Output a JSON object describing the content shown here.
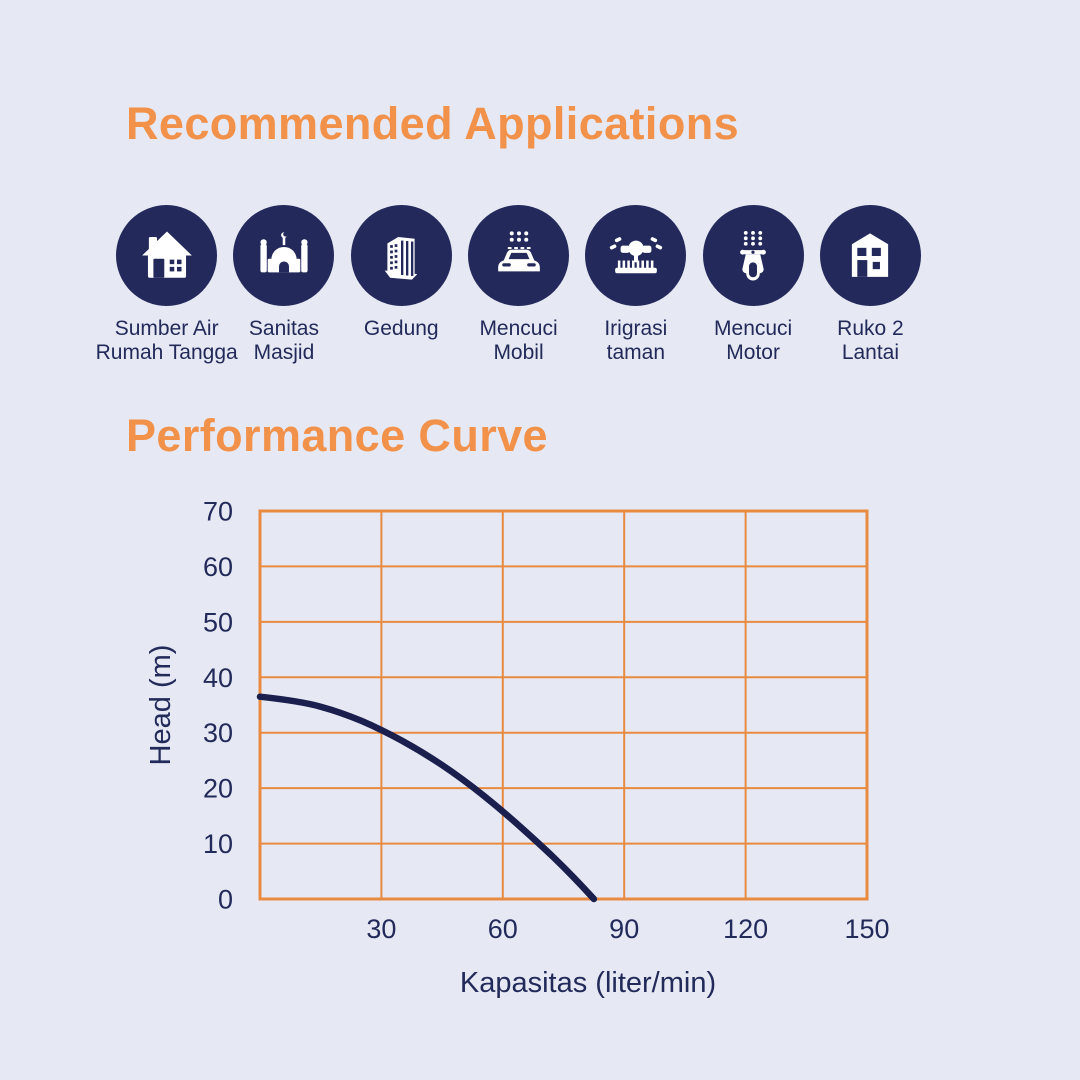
{
  "colors": {
    "background": "#E6E8F3",
    "accent_orange": "#F2914A",
    "grid_orange": "#E98A41",
    "navy": "#232A5B",
    "curve_navy": "#1A1F4D",
    "text_navy": "#222A5A",
    "icon_glyph": "#FFFFFF"
  },
  "applications": {
    "title": "Recommended Applications",
    "items": [
      {
        "icon": "house-icon",
        "lines": [
          "Sumber Air",
          "Rumah Tangga"
        ]
      },
      {
        "icon": "mosque-icon",
        "lines": [
          "Sanitas",
          "Masjid"
        ]
      },
      {
        "icon": "building-icon",
        "lines": [
          "Gedung"
        ]
      },
      {
        "icon": "car-wash-icon",
        "lines": [
          "Mencuci",
          "Mobil"
        ]
      },
      {
        "icon": "sprinkler-icon",
        "lines": [
          "Irigrasi",
          "taman"
        ]
      },
      {
        "icon": "scooter-icon",
        "lines": [
          "Mencuci",
          "Motor"
        ]
      },
      {
        "icon": "shophouse-icon",
        "lines": [
          "Ruko 2",
          "Lantai"
        ]
      }
    ]
  },
  "performance": {
    "title": "Performance Curve"
  },
  "chart_data": {
    "type": "line",
    "title": "Performance Curve",
    "xlabel": "Kapasitas (liter/min)",
    "ylabel": "Head (m)",
    "xlim": [
      0,
      150
    ],
    "ylim": [
      0,
      70
    ],
    "x_ticks": [
      30,
      60,
      90,
      120,
      150
    ],
    "y_ticks": [
      0,
      10,
      20,
      30,
      40,
      50,
      60,
      70
    ],
    "grid": true,
    "legend": false,
    "series": [
      {
        "name": "pump-performance-curve",
        "points": [
          [
            0,
            36.5
          ],
          [
            10,
            35.7
          ],
          [
            20,
            33.7
          ],
          [
            30,
            30.6
          ],
          [
            40,
            26.6
          ],
          [
            50,
            21.7
          ],
          [
            60,
            15.9
          ],
          [
            70,
            9.3
          ],
          [
            75,
            5.8
          ],
          [
            80,
            2.0
          ],
          [
            82.5,
            0
          ]
        ]
      }
    ]
  }
}
